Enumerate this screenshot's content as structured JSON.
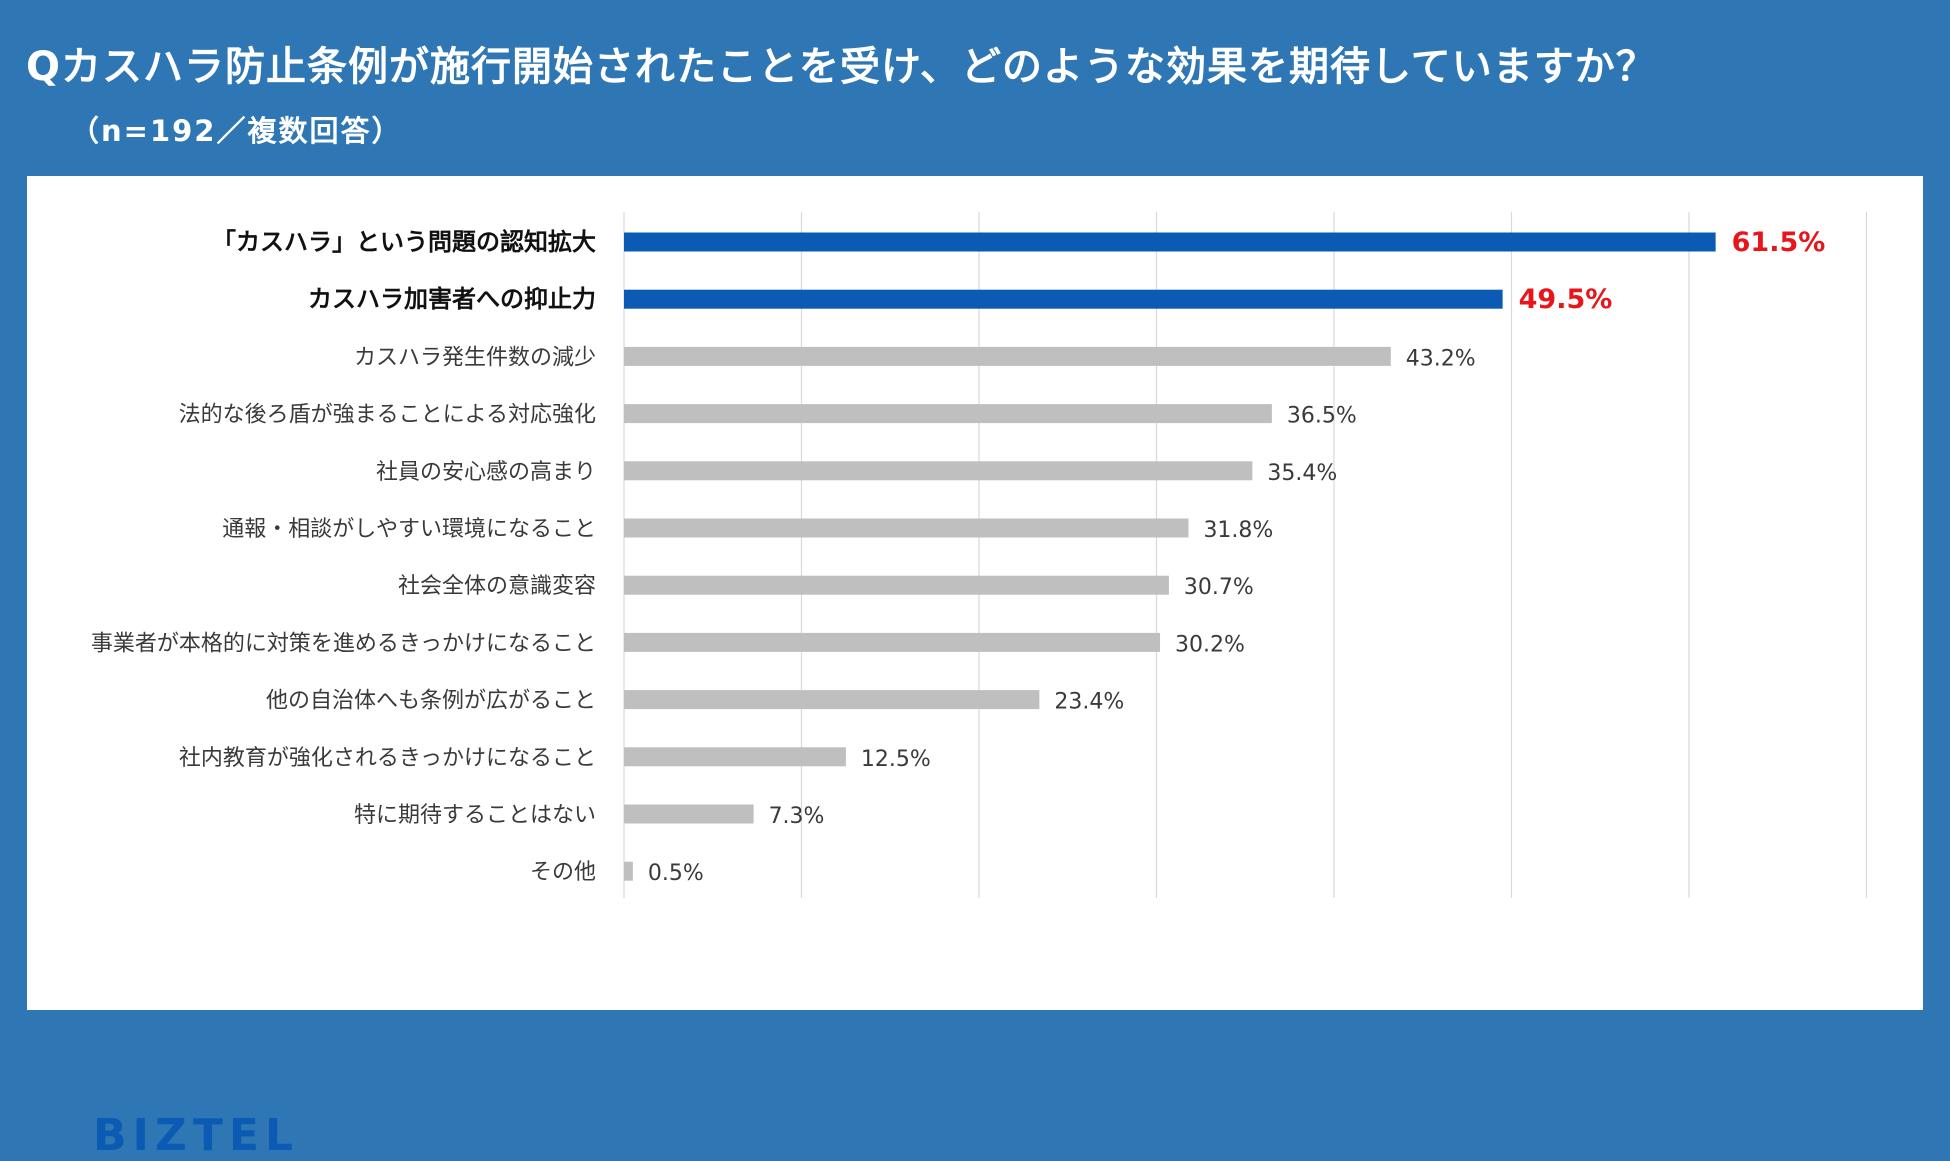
{
  "header": {
    "title": "Qカスハラ防止条例が施行開始されたことを受け、どのような効果を期待していますか？",
    "subtitle": "（n=192／複数回答）"
  },
  "brand": {
    "logo_text": "BIZTEL"
  },
  "colors": {
    "background": "#2f77b4",
    "highlight_bar": "#0b5bb5",
    "regular_bar": "#bfbfbf",
    "highlight_label": "#e8151b",
    "text": "#3a3a3a",
    "grid": "#d9d9d9"
  },
  "chart_data": {
    "type": "bar",
    "orientation": "horizontal",
    "categories": [
      "「カスハラ」という問題の認知拡大",
      "カスハラ加害者への抑止力",
      "カスハラ発生件数の減少",
      "法的な後ろ盾が強まることによる対応強化",
      "社員の安心感の高まり",
      "通報・相談がしやすい環境になること",
      "社会全体の意識変容",
      "事業者が本格的に対策を進めるきっかけになること",
      "他の自治体へも条例が広がること",
      "社内教育が強化されるきっかけになること",
      "特に期待することはない",
      "その他"
    ],
    "values": [
      61.5,
      49.5,
      43.2,
      36.5,
      35.4,
      31.8,
      30.7,
      30.2,
      23.4,
      12.5,
      7.3,
      0.5
    ],
    "value_labels": [
      "61.5%",
      "49.5%",
      "43.2%",
      "36.5%",
      "35.4%",
      "31.8%",
      "30.7%",
      "30.2%",
      "23.4%",
      "12.5%",
      "7.3%",
      "0.5%"
    ],
    "highlighted": [
      true,
      true,
      false,
      false,
      false,
      false,
      false,
      false,
      false,
      false,
      false,
      false
    ],
    "xlim": [
      0,
      70
    ],
    "grid": true,
    "grid_step": 10
  }
}
